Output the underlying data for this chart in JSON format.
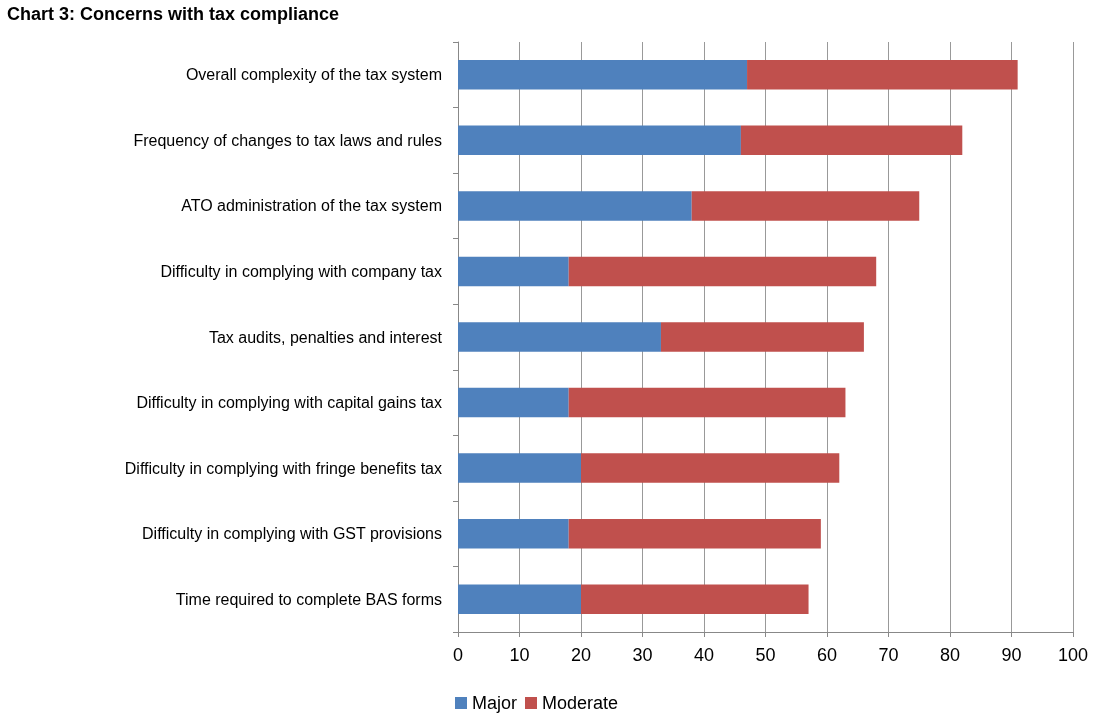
{
  "chart_data": {
    "type": "bar",
    "title": "Chart 3: Concerns with tax compliance",
    "orientation": "horizontal",
    "stacked": true,
    "categories": [
      "Overall complexity of the tax system",
      "Frequency of changes to tax laws and rules",
      "ATO administration of the tax system",
      "Difficulty in complying with company tax",
      "Tax audits, penalties and interest",
      "Difficulty in complying with capital gains tax",
      "Difficulty in complying with fringe benefits tax",
      "Difficulty in complying with GST provisions",
      "Time required to complete BAS forms"
    ],
    "series": [
      {
        "name": "Major",
        "color": "#4f81bd",
        "values": [
          47,
          46,
          38,
          18,
          33,
          18,
          20,
          18,
          20
        ]
      },
      {
        "name": "Moderate",
        "color": "#c0504d",
        "values": [
          44,
          36,
          37,
          50,
          33,
          45,
          42,
          41,
          37
        ]
      }
    ],
    "xlim": [
      0,
      100
    ],
    "xticks": [
      0,
      10,
      20,
      30,
      40,
      50,
      60,
      70,
      80,
      90,
      100
    ],
    "grid": "x",
    "legend": "bottom"
  }
}
